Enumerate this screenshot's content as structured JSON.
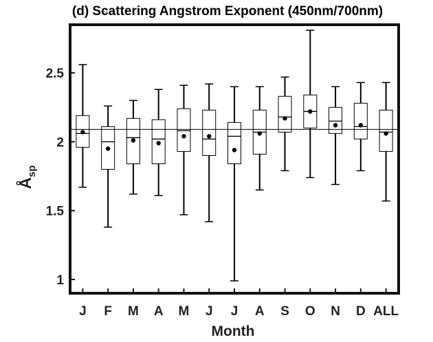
{
  "chart_data": {
    "type": "box",
    "title": "(d) Scattering Angstrom Exponent (450nm/700nm)",
    "xlabel": "Month",
    "ylabel_main": "Å",
    "ylabel_sub": "sp",
    "categories": [
      "J",
      "F",
      "M",
      "A",
      "M",
      "J",
      "J",
      "A",
      "S",
      "O",
      "N",
      "D",
      "ALL"
    ],
    "whisker_low": [
      1.67,
      1.38,
      1.62,
      1.61,
      1.47,
      1.42,
      0.99,
      1.65,
      1.79,
      1.74,
      1.69,
      1.79,
      1.57
    ],
    "q1": [
      1.96,
      1.8,
      1.84,
      1.84,
      1.93,
      1.9,
      1.84,
      1.91,
      2.07,
      2.1,
      2.06,
      2.02,
      1.93
    ],
    "median": [
      2.06,
      2.0,
      2.03,
      2.02,
      2.08,
      2.02,
      2.04,
      2.07,
      2.18,
      2.22,
      2.15,
      2.11,
      2.07
    ],
    "q3": [
      2.19,
      2.11,
      2.17,
      2.16,
      2.24,
      2.23,
      2.14,
      2.23,
      2.33,
      2.34,
      2.25,
      2.28,
      2.23
    ],
    "whisker_high": [
      2.56,
      2.26,
      2.3,
      2.38,
      2.41,
      2.42,
      2.4,
      2.4,
      2.47,
      2.81,
      2.4,
      2.43,
      2.43
    ],
    "mean": [
      2.07,
      1.95,
      2.01,
      1.99,
      2.04,
      2.04,
      1.94,
      2.06,
      2.17,
      2.22,
      2.12,
      2.12,
      2.06
    ],
    "reference_line": 2.09,
    "ylim": [
      0.9,
      2.85
    ],
    "yticks": [
      1,
      1.5,
      2,
      2.5
    ],
    "ytick_labels": [
      "1",
      "1.5",
      "2",
      "2.5"
    ]
  }
}
